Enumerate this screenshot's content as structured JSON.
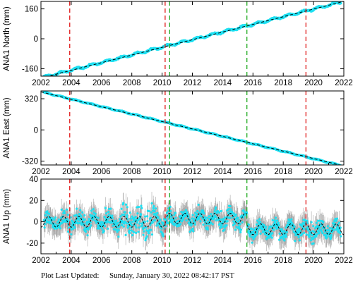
{
  "footer": {
    "prefix": "Plot Last Updated:",
    "timestamp": "Sunday, January 30, 2022 08:42:17 PST"
  },
  "colors": {
    "observation": "#1ee0f2",
    "error_bar": "#a8a8a8",
    "model": "#000000",
    "red_event": "#e01818",
    "green_event": "#22aa22"
  },
  "chart_data": [
    {
      "type": "scatter",
      "id": "north",
      "ylabel": "ANA1 North (mm)",
      "xlim": [
        2002,
        2022
      ],
      "ylim": [
        -200,
        200
      ],
      "yticks": [
        160,
        0,
        -160
      ],
      "xticks": [
        2002,
        2004,
        2006,
        2008,
        2010,
        2012,
        2014,
        2016,
        2018,
        2020,
        2022
      ],
      "series": [
        {
          "role": "model",
          "x": [
            2002,
            2022
          ],
          "y": [
            -210,
            200
          ],
          "style": "dashed"
        }
      ],
      "observations": {
        "start": 2002.2,
        "end": 2021.8,
        "y_start": -205,
        "y_end": 196,
        "scatter": 6
      }
    },
    {
      "type": "scatter",
      "id": "east",
      "ylabel": "ANA1 East (mm)",
      "xlim": [
        2002,
        2022
      ],
      "ylim": [
        -360,
        400
      ],
      "yticks": [
        320,
        0,
        -320
      ],
      "xticks": [
        2002,
        2004,
        2006,
        2008,
        2010,
        2012,
        2014,
        2016,
        2018,
        2020,
        2022
      ],
      "series": [
        {
          "role": "model",
          "x": [
            2002,
            2022
          ],
          "y": [
            390,
            -370
          ],
          "style": "dashed"
        }
      ],
      "observations": {
        "start": 2002.2,
        "end": 2021.8,
        "y_start": 385,
        "y_end": -365,
        "scatter": 5
      }
    },
    {
      "type": "scatter",
      "id": "up",
      "ylabel": "ANA1 Up (mm)",
      "xlim": [
        2002,
        2022
      ],
      "ylim": [
        -30,
        40
      ],
      "yticks": [
        40,
        20,
        0,
        -20
      ],
      "xticks": [
        2002,
        2004,
        2006,
        2008,
        2010,
        2012,
        2014,
        2016,
        2018,
        2020,
        2022
      ],
      "series": [
        {
          "role": "model",
          "style": "dashed",
          "segments": [
            {
              "start": 2002,
              "end": 2010.3,
              "offset": 0,
              "amplitude": 5
            },
            {
              "start": 2010.3,
              "end": 2015.6,
              "offset": 3,
              "amplitude": 5
            },
            {
              "start": 2015.6,
              "end": 2022,
              "offset": -7,
              "amplitude": 5
            }
          ]
        }
      ],
      "observations": {
        "start": 2002.2,
        "end": 2021.8,
        "scatter": 10,
        "error": 9
      }
    }
  ],
  "events": {
    "red": [
      2003.9,
      2010.2,
      2019.5
    ],
    "green": [
      2010.5,
      2015.6
    ]
  }
}
